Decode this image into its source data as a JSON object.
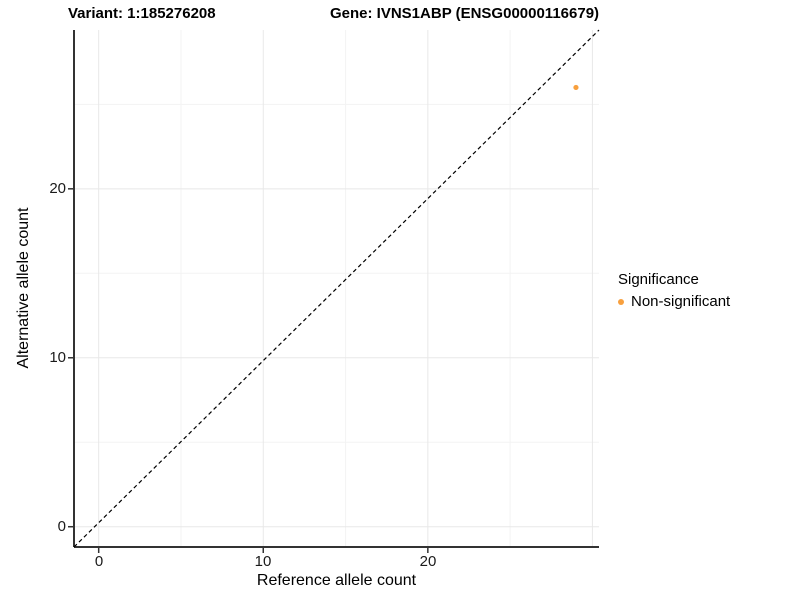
{
  "chart_data": {
    "type": "scatter",
    "titles": {
      "variant": "Variant: 1:185276208",
      "gene": "Gene: IVNS1ABP (ENSG00000116679)"
    },
    "xlabel": "Reference allele count",
    "ylabel": "Alternative allele count",
    "xlim": [
      -1.5,
      30.4
    ],
    "ylim": [
      -1.2,
      29.4
    ],
    "x_major_ticks": [
      0,
      10,
      20
    ],
    "y_major_ticks": [
      0,
      10,
      20
    ],
    "x_grid_major": [
      0,
      10,
      20,
      30
    ],
    "x_grid_minor": [
      5,
      15,
      25
    ],
    "y_grid_major": [
      0,
      10,
      20
    ],
    "y_grid_minor": [
      5,
      15,
      25
    ],
    "points": [
      {
        "x": 29,
        "y": 26,
        "series": "Non-significant"
      }
    ],
    "reference_line": {
      "equation": "y = x",
      "style": "dashed",
      "color": "#000000"
    },
    "legend": {
      "title": "Significance",
      "position": "right",
      "entries": [
        {
          "label": "Non-significant",
          "color": "#F8A03E"
        }
      ]
    },
    "colors": {
      "point": "#F8A03E",
      "axis_line": "#333333",
      "grid_major": "#e8e8e8",
      "grid_minor": "#f3f3f3",
      "background": "#ffffff"
    },
    "grid": "on",
    "panel_border": "left-bottom-only"
  }
}
